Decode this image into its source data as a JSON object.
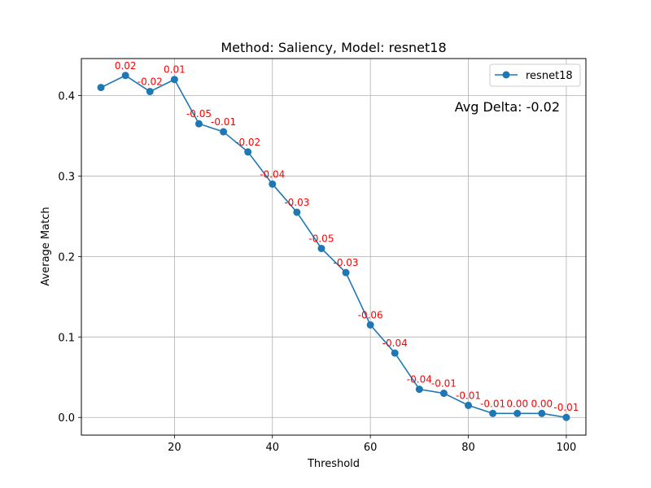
{
  "chart_data": {
    "type": "line",
    "title": "Method: Saliency, Model: resnet18",
    "xlabel": "Threshold",
    "ylabel": "Average Match",
    "xlim": [
      1,
      104
    ],
    "ylim": [
      -0.022,
      0.446
    ],
    "xticks": [
      20,
      40,
      60,
      80,
      100
    ],
    "yticks": [
      0.0,
      0.1,
      0.2,
      0.3,
      0.4
    ],
    "xtick_labels": [
      "20",
      "40",
      "60",
      "80",
      "100"
    ],
    "ytick_labels": [
      "0.0",
      "0.1",
      "0.2",
      "0.3",
      "0.4"
    ],
    "grid": true,
    "legend_position": "top-right",
    "annotation": "Avg Delta: -0.02",
    "series": [
      {
        "name": "resnet18",
        "color": "#1f77b4",
        "x": [
          5,
          10,
          15,
          20,
          25,
          30,
          35,
          40,
          45,
          50,
          55,
          60,
          65,
          70,
          75,
          80,
          85,
          90,
          95,
          100
        ],
        "y": [
          0.41,
          0.425,
          0.405,
          0.42,
          0.365,
          0.355,
          0.33,
          0.29,
          0.255,
          0.21,
          0.18,
          0.115,
          0.08,
          0.035,
          0.03,
          0.015,
          0.005,
          0.005,
          0.005,
          0.0
        ]
      }
    ],
    "delta_labels": {
      "color": "#ff0000",
      "x": [
        10,
        15,
        20,
        25,
        30,
        35,
        40,
        45,
        50,
        55,
        60,
        65,
        70,
        75,
        80,
        85,
        90,
        95,
        100
      ],
      "y": [
        0.425,
        0.405,
        0.42,
        0.365,
        0.355,
        0.33,
        0.29,
        0.255,
        0.21,
        0.18,
        0.115,
        0.08,
        0.035,
        0.03,
        0.015,
        0.005,
        0.005,
        0.005,
        0.0
      ],
      "labels": [
        "0.02",
        "-0.02",
        "0.01",
        "-0.05",
        "-0.01",
        "-0.02",
        "-0.04",
        "-0.03",
        "-0.05",
        "-0.03",
        "-0.06",
        "-0.04",
        "-0.04",
        "-0.01",
        "-0.01",
        "-0.01",
        "0.00",
        "0.00",
        "-0.01"
      ]
    }
  }
}
